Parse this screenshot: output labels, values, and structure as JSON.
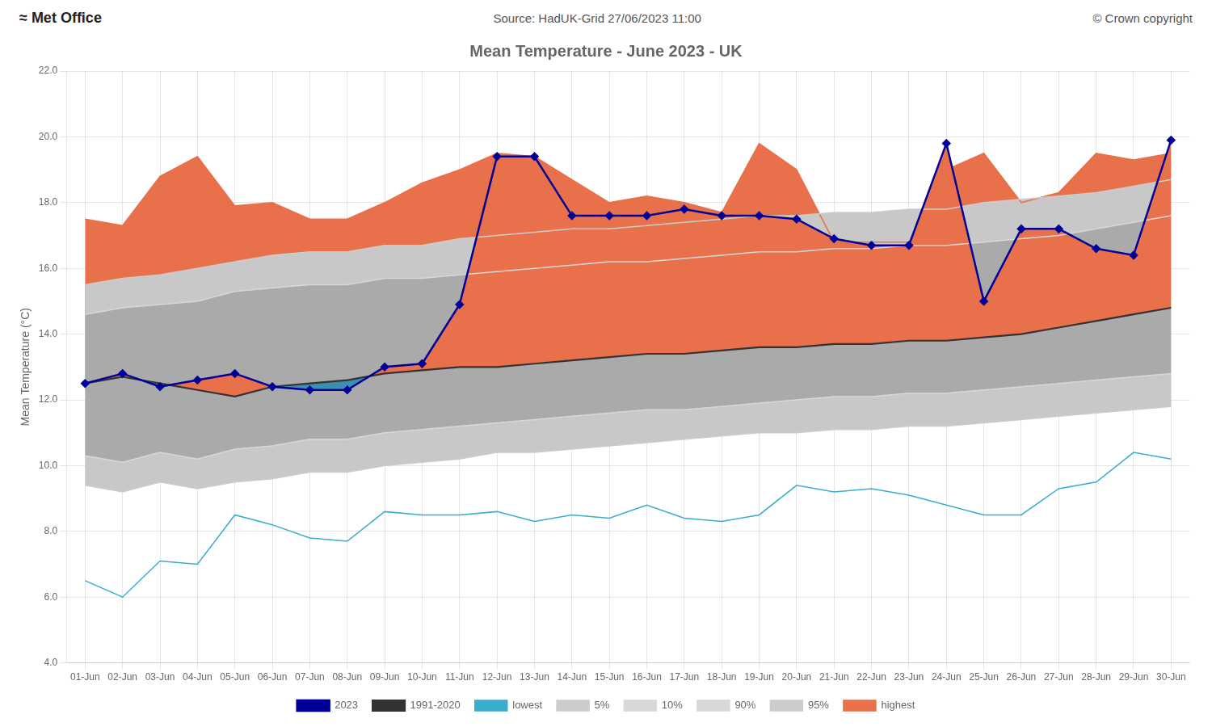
{
  "chart_data": {
    "type": "line",
    "title": "Mean Temperature - June 2023 - UK",
    "subtitle": "Source: HadUK-Grid 27/06/2023 11:00",
    "annotations": [
      "≈ Met Office",
      "© Crown copyright"
    ],
    "ylabel": "Mean Temperature (°C)",
    "ylim": [
      4.0,
      22.0
    ],
    "yticks": [
      {
        "value": 4,
        "label": "4.0"
      },
      {
        "value": 6,
        "label": "6.0"
      },
      {
        "value": 8,
        "label": "8.0"
      },
      {
        "value": 10,
        "label": "10.0"
      },
      {
        "value": 12,
        "label": "12.0"
      },
      {
        "value": 14,
        "label": "14.0"
      },
      {
        "value": 16,
        "label": "16.0"
      },
      {
        "value": 18,
        "label": "18.0"
      },
      {
        "value": 20,
        "label": "20.0"
      },
      {
        "value": 22,
        "label": "22.0"
      }
    ],
    "grid": true,
    "legend": "bottom",
    "categories": [
      "01-Jun",
      "02-Jun",
      "03-Jun",
      "04-Jun",
      "05-Jun",
      "06-Jun",
      "07-Jun",
      "08-Jun",
      "09-Jun",
      "10-Jun",
      "11-Jun",
      "12-Jun",
      "13-Jun",
      "14-Jun",
      "15-Jun",
      "16-Jun",
      "17-Jun",
      "18-Jun",
      "19-Jun",
      "20-Jun",
      "21-Jun",
      "22-Jun",
      "23-Jun",
      "24-Jun",
      "25-Jun",
      "26-Jun",
      "27-Jun",
      "28-Jun",
      "29-Jun",
      "30-Jun"
    ],
    "series": [
      {
        "name": "1991-2020",
        "color": "#333333",
        "marker": "none",
        "line_style": "solid",
        "values": [
          12.5,
          12.7,
          12.5,
          12.3,
          12.1,
          12.4,
          12.5,
          12.6,
          12.8,
          12.9,
          13.0,
          13.0,
          13.1,
          13.2,
          13.3,
          13.4,
          13.4,
          13.5,
          13.6,
          13.6,
          13.7,
          13.7,
          13.8,
          13.8,
          13.9,
          14.0,
          14.2,
          14.4,
          14.6,
          14.8
        ]
      },
      {
        "name": "lowest",
        "color": "#3AADCC",
        "marker": "none",
        "line_style": "solid",
        "values": [
          6.5,
          6.0,
          7.1,
          7.0,
          8.5,
          8.2,
          7.8,
          7.7,
          8.6,
          8.5,
          8.5,
          8.6,
          8.3,
          8.5,
          8.4,
          8.8,
          8.4,
          8.3,
          8.5,
          9.4,
          9.2,
          9.3,
          9.1,
          8.8,
          8.5,
          8.5,
          9.3,
          9.5,
          10.4,
          10.2
        ]
      },
      {
        "name": "5%",
        "color": "#CCCCCC",
        "marker": "none",
        "line_style": "solid",
        "values": [
          9.4,
          9.2,
          9.5,
          9.3,
          9.5,
          9.6,
          9.8,
          9.8,
          10.0,
          10.1,
          10.2,
          10.4,
          10.4,
          10.5,
          10.6,
          10.7,
          10.8,
          10.9,
          11.0,
          11.0,
          11.1,
          11.1,
          11.2,
          11.2,
          11.3,
          11.4,
          11.5,
          11.6,
          11.7,
          11.8
        ]
      },
      {
        "name": "10%",
        "color": "#D8D8D8",
        "marker": "none",
        "line_style": "solid",
        "values": [
          10.3,
          10.1,
          10.4,
          10.2,
          10.5,
          10.6,
          10.8,
          10.8,
          11.0,
          11.1,
          11.2,
          11.3,
          11.4,
          11.5,
          11.6,
          11.7,
          11.7,
          11.8,
          11.9,
          12.0,
          12.1,
          12.1,
          12.2,
          12.2,
          12.3,
          12.4,
          12.5,
          12.6,
          12.7,
          12.8
        ]
      },
      {
        "name": "90%",
        "color": "#D8D8D8",
        "marker": "none",
        "line_style": "solid",
        "values": [
          14.6,
          14.8,
          14.9,
          15.0,
          15.3,
          15.4,
          15.5,
          15.5,
          15.7,
          15.7,
          15.8,
          15.9,
          16.0,
          16.1,
          16.2,
          16.2,
          16.3,
          16.4,
          16.5,
          16.5,
          16.6,
          16.6,
          16.7,
          16.7,
          16.8,
          16.9,
          17.0,
          17.2,
          17.4,
          17.6
        ]
      },
      {
        "name": "95%",
        "color": "#CCCCCC",
        "marker": "none",
        "line_style": "solid",
        "values": [
          15.5,
          15.7,
          15.8,
          16.0,
          16.2,
          16.4,
          16.5,
          16.5,
          16.7,
          16.7,
          16.9,
          17.0,
          17.1,
          17.2,
          17.2,
          17.3,
          17.4,
          17.5,
          17.6,
          17.6,
          17.7,
          17.7,
          17.8,
          17.8,
          18.0,
          18.1,
          18.2,
          18.3,
          18.5,
          18.7
        ]
      },
      {
        "name": "highest",
        "color": "#E8704A",
        "marker": "none",
        "line_style": "solid",
        "values": [
          17.5,
          17.3,
          18.8,
          19.4,
          17.9,
          18.0,
          17.5,
          17.5,
          18.0,
          18.6,
          19.0,
          19.5,
          19.4,
          18.7,
          18.0,
          18.2,
          18.0,
          17.7,
          19.8,
          19.0,
          16.8,
          16.8,
          16.8,
          19.0,
          19.5,
          18.0,
          18.3,
          19.5,
          19.3,
          19.5
        ]
      },
      {
        "name": "2023",
        "color": "#000099",
        "marker": "diamond",
        "line_style": "solid",
        "values": [
          12.5,
          12.8,
          12.4,
          12.6,
          12.8,
          12.4,
          12.3,
          12.3,
          13.0,
          13.1,
          14.9,
          19.4,
          19.4,
          17.6,
          17.6,
          17.6,
          17.8,
          17.6,
          17.6,
          17.5,
          16.9,
          16.7,
          16.7,
          19.8,
          15.0,
          17.2,
          17.2,
          16.6,
          16.4,
          19.9
        ]
      }
    ],
    "bands": [
      {
        "from": "1991-2020",
        "to": "highest",
        "color": "#E8704A"
      },
      {
        "from": "5%",
        "to": "95%",
        "color": "#C8C8C8"
      },
      {
        "from": "10%",
        "to": "90%",
        "color": "#AAAAAA"
      },
      {
        "from": "1991-2020",
        "to": "2023",
        "color": "#E8704A",
        "color_below": "#3A90B0"
      }
    ]
  }
}
